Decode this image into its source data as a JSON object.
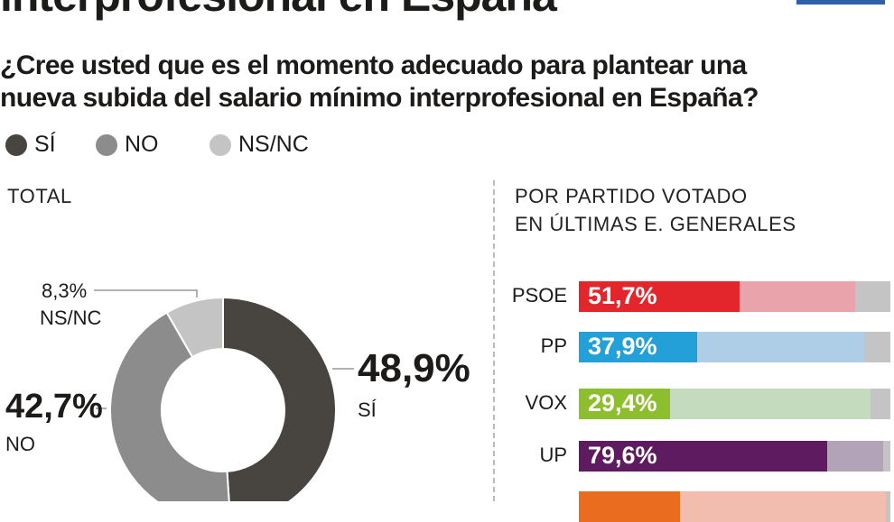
{
  "title": "interprofesional en España",
  "question": {
    "line1": "¿Cree usted que es el momento adecuado para plantear una",
    "line2": "nueva subida del salario mínimo interprofesional en España?"
  },
  "legend": [
    {
      "label": "SÍ",
      "color": "#48443f"
    },
    {
      "label": "NO",
      "color": "#8c8c8c"
    },
    {
      "label": "NS/NC",
      "color": "#c4c4c4"
    }
  ],
  "chart_data": [
    {
      "type": "pie",
      "title": "TOTAL",
      "donut": true,
      "slices": [
        {
          "label": "SÍ",
          "value": 48.9,
          "value_label": "48,9%",
          "color": "#48443f"
        },
        {
          "label": "NO",
          "value": 42.7,
          "value_label": "42,7%",
          "color": "#8c8c8c"
        },
        {
          "label": "NS/NC",
          "value": 8.3,
          "value_label": "8,3%",
          "color": "#c4c4c4"
        }
      ]
    },
    {
      "type": "bar",
      "orientation": "horizontal",
      "stacked": true,
      "title_line1": "POR PARTIDO VOTADO",
      "title_line2": "EN ÚLTIMAS E. GENERALES",
      "xlim": [
        0,
        100
      ],
      "rows": [
        {
          "party": "PSOE",
          "si": 51.7,
          "si_label": "51,7%",
          "no": 37.0,
          "color": "#e3262b",
          "no_color": "#e8a3ab"
        },
        {
          "party": "PP",
          "si": 37.9,
          "si_label": "37,9%",
          "no": 54.0,
          "color": "#24a0d8",
          "no_color": "#aecde6"
        },
        {
          "party": "VOX",
          "si": 29.4,
          "si_label": "29,4%",
          "no": 64.2,
          "color": "#8dbe2e",
          "no_color": "#c5dbbd"
        },
        {
          "party": "UP",
          "si": 79.6,
          "si_label": "79,6%",
          "no": 18.0,
          "color": "#5e1b5f",
          "no_color": "#b3a3b9"
        },
        {
          "party": "",
          "si": 32.5,
          "si_label": "",
          "no": 66.0,
          "color": "#ea6d1f",
          "no_color": "#f2bcaf"
        }
      ]
    }
  ]
}
